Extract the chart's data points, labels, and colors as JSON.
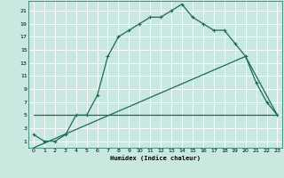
{
  "title": "",
  "xlabel": "Humidex (Indice chaleur)",
  "background_color": "#c8e8e0",
  "grid_color": "#ffffff",
  "line_color": "#1a6b5a",
  "xlim": [
    -0.5,
    23.5
  ],
  "ylim": [
    0,
    22.5
  ],
  "xticks": [
    0,
    1,
    2,
    3,
    4,
    5,
    6,
    7,
    8,
    9,
    10,
    11,
    12,
    13,
    14,
    15,
    16,
    17,
    18,
    19,
    20,
    21,
    22,
    23
  ],
  "yticks": [
    1,
    3,
    5,
    7,
    9,
    11,
    13,
    15,
    17,
    19,
    21
  ],
  "curve1_x": [
    0,
    1,
    2,
    3,
    4,
    5,
    6,
    7,
    8,
    9,
    10,
    11,
    12,
    13,
    14,
    15,
    16,
    17,
    18,
    19,
    20,
    21,
    22,
    23
  ],
  "curve1_y": [
    2,
    1,
    1,
    2,
    5,
    5,
    8,
    14,
    17,
    18,
    19,
    20,
    20,
    21,
    22,
    20,
    19,
    18,
    18,
    16,
    14,
    10,
    7,
    5
  ],
  "curve2_x": [
    0,
    15,
    23
  ],
  "curve2_y": [
    5,
    5,
    5
  ],
  "curve3_x": [
    0,
    20,
    23
  ],
  "curve3_y": [
    0,
    14,
    5
  ]
}
